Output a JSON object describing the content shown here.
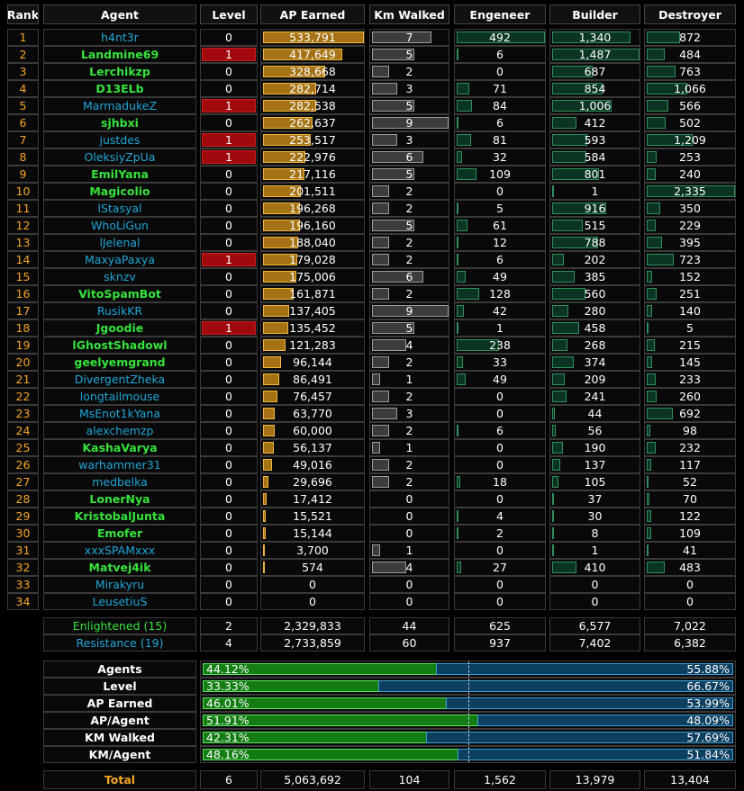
{
  "headers": {
    "rank": "Rank",
    "agent": "Agent",
    "level": "Level",
    "ap": "AP Earned",
    "km": "Km Walked",
    "eng": "Engeneer",
    "bld": "Builder",
    "dst": "Destroyer"
  },
  "max": {
    "ap": 533791,
    "km": 9,
    "eng": 492,
    "bld": 1487,
    "dst": 2335
  },
  "agents": [
    {
      "rank": "1",
      "name": "h4nt3r",
      "faction": "res",
      "level": "0",
      "lvl_fill": 0,
      "ap": "533,791",
      "ap_v": 533791,
      "km": "7",
      "km_v": 7,
      "eng": "492",
      "eng_v": 492,
      "bld": "1,340",
      "bld_v": 1340,
      "dst": "872",
      "dst_v": 872
    },
    {
      "rank": "2",
      "name": "Landmine69",
      "faction": "enl",
      "level": "1",
      "lvl_fill": 1,
      "ap": "417,649",
      "ap_v": 417649,
      "km": "5",
      "km_v": 5,
      "eng": "6",
      "eng_v": 6,
      "bld": "1,487",
      "bld_v": 1487,
      "dst": "484",
      "dst_v": 484
    },
    {
      "rank": "3",
      "name": "Lerchikzp",
      "faction": "enl",
      "level": "0",
      "lvl_fill": 0,
      "ap": "328,668",
      "ap_v": 328668,
      "km": "2",
      "km_v": 2,
      "eng": "0",
      "eng_v": 0,
      "bld": "687",
      "bld_v": 687,
      "dst": "763",
      "dst_v": 763
    },
    {
      "rank": "4",
      "name": "D13ELb",
      "faction": "enl",
      "level": "0",
      "lvl_fill": 0,
      "ap": "282,714",
      "ap_v": 282714,
      "km": "3",
      "km_v": 3,
      "eng": "71",
      "eng_v": 71,
      "bld": "854",
      "bld_v": 854,
      "dst": "1,066",
      "dst_v": 1066
    },
    {
      "rank": "5",
      "name": "MarmadukeZ",
      "faction": "res",
      "level": "1",
      "lvl_fill": 1,
      "ap": "282,538",
      "ap_v": 282538,
      "km": "5",
      "km_v": 5,
      "eng": "84",
      "eng_v": 84,
      "bld": "1,006",
      "bld_v": 1006,
      "dst": "566",
      "dst_v": 566
    },
    {
      "rank": "6",
      "name": "sjhbxi",
      "faction": "enl",
      "level": "0",
      "lvl_fill": 0,
      "ap": "262,637",
      "ap_v": 262637,
      "km": "9",
      "km_v": 9,
      "eng": "6",
      "eng_v": 6,
      "bld": "412",
      "bld_v": 412,
      "dst": "502",
      "dst_v": 502
    },
    {
      "rank": "7",
      "name": "justdes",
      "faction": "res",
      "level": "1",
      "lvl_fill": 1,
      "ap": "253,517",
      "ap_v": 253517,
      "km": "3",
      "km_v": 3,
      "eng": "81",
      "eng_v": 81,
      "bld": "593",
      "bld_v": 593,
      "dst": "1,209",
      "dst_v": 1209
    },
    {
      "rank": "8",
      "name": "OleksiyZpUa",
      "faction": "res",
      "level": "1",
      "lvl_fill": 1,
      "ap": "222,976",
      "ap_v": 222976,
      "km": "6",
      "km_v": 6,
      "eng": "32",
      "eng_v": 32,
      "bld": "584",
      "bld_v": 584,
      "dst": "253",
      "dst_v": 253
    },
    {
      "rank": "9",
      "name": "EmilYana",
      "faction": "enl",
      "level": "0",
      "lvl_fill": 0,
      "ap": "217,116",
      "ap_v": 217116,
      "km": "5",
      "km_v": 5,
      "eng": "109",
      "eng_v": 109,
      "bld": "801",
      "bld_v": 801,
      "dst": "240",
      "dst_v": 240
    },
    {
      "rank": "10",
      "name": "Magicolio",
      "faction": "enl",
      "level": "0",
      "lvl_fill": 0,
      "ap": "201,511",
      "ap_v": 201511,
      "km": "2",
      "km_v": 2,
      "eng": "0",
      "eng_v": 0,
      "bld": "1",
      "bld_v": 1,
      "dst": "2,335",
      "dst_v": 2335
    },
    {
      "rank": "11",
      "name": "lStasyal",
      "faction": "res",
      "level": "0",
      "lvl_fill": 0,
      "ap": "196,268",
      "ap_v": 196268,
      "km": "2",
      "km_v": 2,
      "eng": "5",
      "eng_v": 5,
      "bld": "916",
      "bld_v": 916,
      "dst": "350",
      "dst_v": 350
    },
    {
      "rank": "12",
      "name": "WhoLiGun",
      "faction": "res",
      "level": "0",
      "lvl_fill": 0,
      "ap": "196,160",
      "ap_v": 196160,
      "km": "5",
      "km_v": 5,
      "eng": "61",
      "eng_v": 61,
      "bld": "515",
      "bld_v": 515,
      "dst": "229",
      "dst_v": 229
    },
    {
      "rank": "13",
      "name": "lJelenal",
      "faction": "res",
      "level": "0",
      "lvl_fill": 0,
      "ap": "188,040",
      "ap_v": 188040,
      "km": "2",
      "km_v": 2,
      "eng": "12",
      "eng_v": 12,
      "bld": "788",
      "bld_v": 788,
      "dst": "395",
      "dst_v": 395
    },
    {
      "rank": "14",
      "name": "MaxyaPaxya",
      "faction": "res",
      "level": "1",
      "lvl_fill": 1,
      "ap": "179,028",
      "ap_v": 179028,
      "km": "2",
      "km_v": 2,
      "eng": "6",
      "eng_v": 6,
      "bld": "202",
      "bld_v": 202,
      "dst": "723",
      "dst_v": 723
    },
    {
      "rank": "15",
      "name": "sknzv",
      "faction": "res",
      "level": "0",
      "lvl_fill": 0,
      "ap": "175,006",
      "ap_v": 175006,
      "km": "6",
      "km_v": 6,
      "eng": "49",
      "eng_v": 49,
      "bld": "385",
      "bld_v": 385,
      "dst": "152",
      "dst_v": 152
    },
    {
      "rank": "16",
      "name": "VitoSpamBot",
      "faction": "enl",
      "level": "0",
      "lvl_fill": 0,
      "ap": "161,871",
      "ap_v": 161871,
      "km": "2",
      "km_v": 2,
      "eng": "128",
      "eng_v": 128,
      "bld": "560",
      "bld_v": 560,
      "dst": "251",
      "dst_v": 251
    },
    {
      "rank": "17",
      "name": "RusikKR",
      "faction": "res",
      "level": "0",
      "lvl_fill": 0,
      "ap": "137,405",
      "ap_v": 137405,
      "km": "9",
      "km_v": 9,
      "eng": "42",
      "eng_v": 42,
      "bld": "280",
      "bld_v": 280,
      "dst": "140",
      "dst_v": 140
    },
    {
      "rank": "18",
      "name": "Jgoodie",
      "faction": "enl",
      "level": "1",
      "lvl_fill": 1,
      "ap": "135,452",
      "ap_v": 135452,
      "km": "5",
      "km_v": 5,
      "eng": "1",
      "eng_v": 1,
      "bld": "458",
      "bld_v": 458,
      "dst": "5",
      "dst_v": 5
    },
    {
      "rank": "19",
      "name": "lGhostShadowl",
      "faction": "enl",
      "level": "0",
      "lvl_fill": 0,
      "ap": "121,283",
      "ap_v": 121283,
      "km": "4",
      "km_v": 4,
      "eng": "238",
      "eng_v": 238,
      "bld": "268",
      "bld_v": 268,
      "dst": "215",
      "dst_v": 215
    },
    {
      "rank": "20",
      "name": "geelyemgrand",
      "faction": "enl",
      "level": "0",
      "lvl_fill": 0,
      "ap": "96,144",
      "ap_v": 96144,
      "km": "2",
      "km_v": 2,
      "eng": "33",
      "eng_v": 33,
      "bld": "374",
      "bld_v": 374,
      "dst": "145",
      "dst_v": 145
    },
    {
      "rank": "21",
      "name": "DivergentZheka",
      "faction": "res",
      "level": "0",
      "lvl_fill": 0,
      "ap": "86,491",
      "ap_v": 86491,
      "km": "1",
      "km_v": 1,
      "eng": "49",
      "eng_v": 49,
      "bld": "209",
      "bld_v": 209,
      "dst": "233",
      "dst_v": 233
    },
    {
      "rank": "22",
      "name": "longtailmouse",
      "faction": "res",
      "level": "0",
      "lvl_fill": 0,
      "ap": "76,457",
      "ap_v": 76457,
      "km": "2",
      "km_v": 2,
      "eng": "0",
      "eng_v": 0,
      "bld": "241",
      "bld_v": 241,
      "dst": "260",
      "dst_v": 260
    },
    {
      "rank": "23",
      "name": "MsEnot1kYana",
      "faction": "res",
      "level": "0",
      "lvl_fill": 0,
      "ap": "63,770",
      "ap_v": 63770,
      "km": "3",
      "km_v": 3,
      "eng": "0",
      "eng_v": 0,
      "bld": "44",
      "bld_v": 44,
      "dst": "692",
      "dst_v": 692
    },
    {
      "rank": "24",
      "name": "alexchemzp",
      "faction": "res",
      "level": "0",
      "lvl_fill": 0,
      "ap": "60,000",
      "ap_v": 60000,
      "km": "2",
      "km_v": 2,
      "eng": "6",
      "eng_v": 6,
      "bld": "56",
      "bld_v": 56,
      "dst": "98",
      "dst_v": 98
    },
    {
      "rank": "25",
      "name": "KashaVarya",
      "faction": "enl",
      "level": "0",
      "lvl_fill": 0,
      "ap": "56,137",
      "ap_v": 56137,
      "km": "1",
      "km_v": 1,
      "eng": "0",
      "eng_v": 0,
      "bld": "190",
      "bld_v": 190,
      "dst": "232",
      "dst_v": 232
    },
    {
      "rank": "26",
      "name": "warhammer31",
      "faction": "res",
      "level": "0",
      "lvl_fill": 0,
      "ap": "49,016",
      "ap_v": 49016,
      "km": "2",
      "km_v": 2,
      "eng": "0",
      "eng_v": 0,
      "bld": "137",
      "bld_v": 137,
      "dst": "117",
      "dst_v": 117
    },
    {
      "rank": "27",
      "name": "medbelka",
      "faction": "res",
      "level": "0",
      "lvl_fill": 0,
      "ap": "29,696",
      "ap_v": 29696,
      "km": "2",
      "km_v": 2,
      "eng": "18",
      "eng_v": 18,
      "bld": "105",
      "bld_v": 105,
      "dst": "52",
      "dst_v": 52
    },
    {
      "rank": "28",
      "name": "LonerNya",
      "faction": "enl",
      "level": "0",
      "lvl_fill": 0,
      "ap": "17,412",
      "ap_v": 17412,
      "km": "0",
      "km_v": 0,
      "eng": "0",
      "eng_v": 0,
      "bld": "37",
      "bld_v": 37,
      "dst": "70",
      "dst_v": 70
    },
    {
      "rank": "29",
      "name": "KristobalJunta",
      "faction": "enl",
      "level": "0",
      "lvl_fill": 0,
      "ap": "15,521",
      "ap_v": 15521,
      "km": "0",
      "km_v": 0,
      "eng": "4",
      "eng_v": 4,
      "bld": "30",
      "bld_v": 30,
      "dst": "122",
      "dst_v": 122
    },
    {
      "rank": "30",
      "name": "Emofer",
      "faction": "enl",
      "level": "0",
      "lvl_fill": 0,
      "ap": "15,144",
      "ap_v": 15144,
      "km": "0",
      "km_v": 0,
      "eng": "2",
      "eng_v": 2,
      "bld": "8",
      "bld_v": 8,
      "dst": "109",
      "dst_v": 109
    },
    {
      "rank": "31",
      "name": "xxxSPAMxxx",
      "faction": "res",
      "level": "0",
      "lvl_fill": 0,
      "ap": "3,700",
      "ap_v": 3700,
      "km": "1",
      "km_v": 1,
      "eng": "0",
      "eng_v": 0,
      "bld": "1",
      "bld_v": 1,
      "dst": "41",
      "dst_v": 41
    },
    {
      "rank": "32",
      "name": "Matvej4ik",
      "faction": "enl",
      "level": "0",
      "lvl_fill": 0,
      "ap": "574",
      "ap_v": 574,
      "km": "4",
      "km_v": 4,
      "eng": "27",
      "eng_v": 27,
      "bld": "410",
      "bld_v": 410,
      "dst": "483",
      "dst_v": 483
    },
    {
      "rank": "33",
      "name": "Mirakyru",
      "faction": "res",
      "level": "0",
      "lvl_fill": 0,
      "ap": "0",
      "ap_v": 0,
      "km": "0",
      "km_v": 0,
      "eng": "0",
      "eng_v": 0,
      "bld": "0",
      "bld_v": 0,
      "dst": "0",
      "dst_v": 0
    },
    {
      "rank": "34",
      "name": "LeusetiuS",
      "faction": "res",
      "level": "0",
      "lvl_fill": 0,
      "ap": "0",
      "ap_v": 0,
      "km": "0",
      "km_v": 0,
      "eng": "0",
      "eng_v": 0,
      "bld": "0",
      "bld_v": 0,
      "dst": "0",
      "dst_v": 0
    }
  ],
  "factions": [
    {
      "label": "Enlightened (15)",
      "faction": "enl",
      "level": "2",
      "ap": "2,329,833",
      "km": "44",
      "eng": "625",
      "bld": "6,577",
      "dst": "7,022"
    },
    {
      "label": "Resistance (19)",
      "faction": "res",
      "level": "4",
      "ap": "2,733,859",
      "km": "60",
      "eng": "937",
      "bld": "7,402",
      "dst": "6,382"
    }
  ],
  "stats": [
    {
      "label": "Agents",
      "enl_pct": 44.12,
      "enl": "44.12%",
      "res": "55.88%"
    },
    {
      "label": "Level",
      "enl_pct": 33.33,
      "enl": "33.33%",
      "res": "66.67%"
    },
    {
      "label": "AP Earned",
      "enl_pct": 46.01,
      "enl": "46.01%",
      "res": "53.99%"
    },
    {
      "label": "AP/Agent",
      "enl_pct": 51.91,
      "enl": "51.91%",
      "res": "48.09%"
    },
    {
      "label": "KM Walked",
      "enl_pct": 42.31,
      "enl": "42.31%",
      "res": "57.69%"
    },
    {
      "label": "KM/Agent",
      "enl_pct": 48.16,
      "enl": "48.16%",
      "res": "51.84%"
    }
  ],
  "total": {
    "label": "Total",
    "level": "6",
    "ap": "5,063,692",
    "km": "104",
    "eng": "1,562",
    "bld": "13,979",
    "dst": "13,404"
  },
  "colors": {
    "enl": "#36e33b",
    "res": "#1ea7d6",
    "rank": "#f5a623",
    "ap_bar": "#a57315",
    "level_bar": "#a0090d"
  }
}
